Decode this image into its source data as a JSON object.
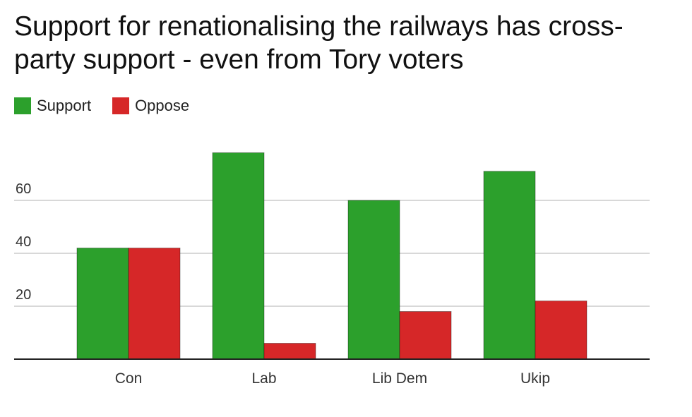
{
  "chart_data": {
    "type": "bar",
    "title": "Support for renationalising the railways has cross-party support - even from Tory voters",
    "categories": [
      "Con",
      "Lab",
      "Lib Dem",
      "Ukip"
    ],
    "series": [
      {
        "name": "Support",
        "values": [
          42,
          78,
          60,
          71
        ],
        "color": "#2ca02c"
      },
      {
        "name": "Oppose",
        "values": [
          42,
          6,
          18,
          22
        ],
        "color": "#d62728"
      }
    ],
    "y_ticks": [
      20,
      40,
      60
    ],
    "ylim": [
      0,
      80
    ],
    "grid": true,
    "legend": "top-left"
  }
}
